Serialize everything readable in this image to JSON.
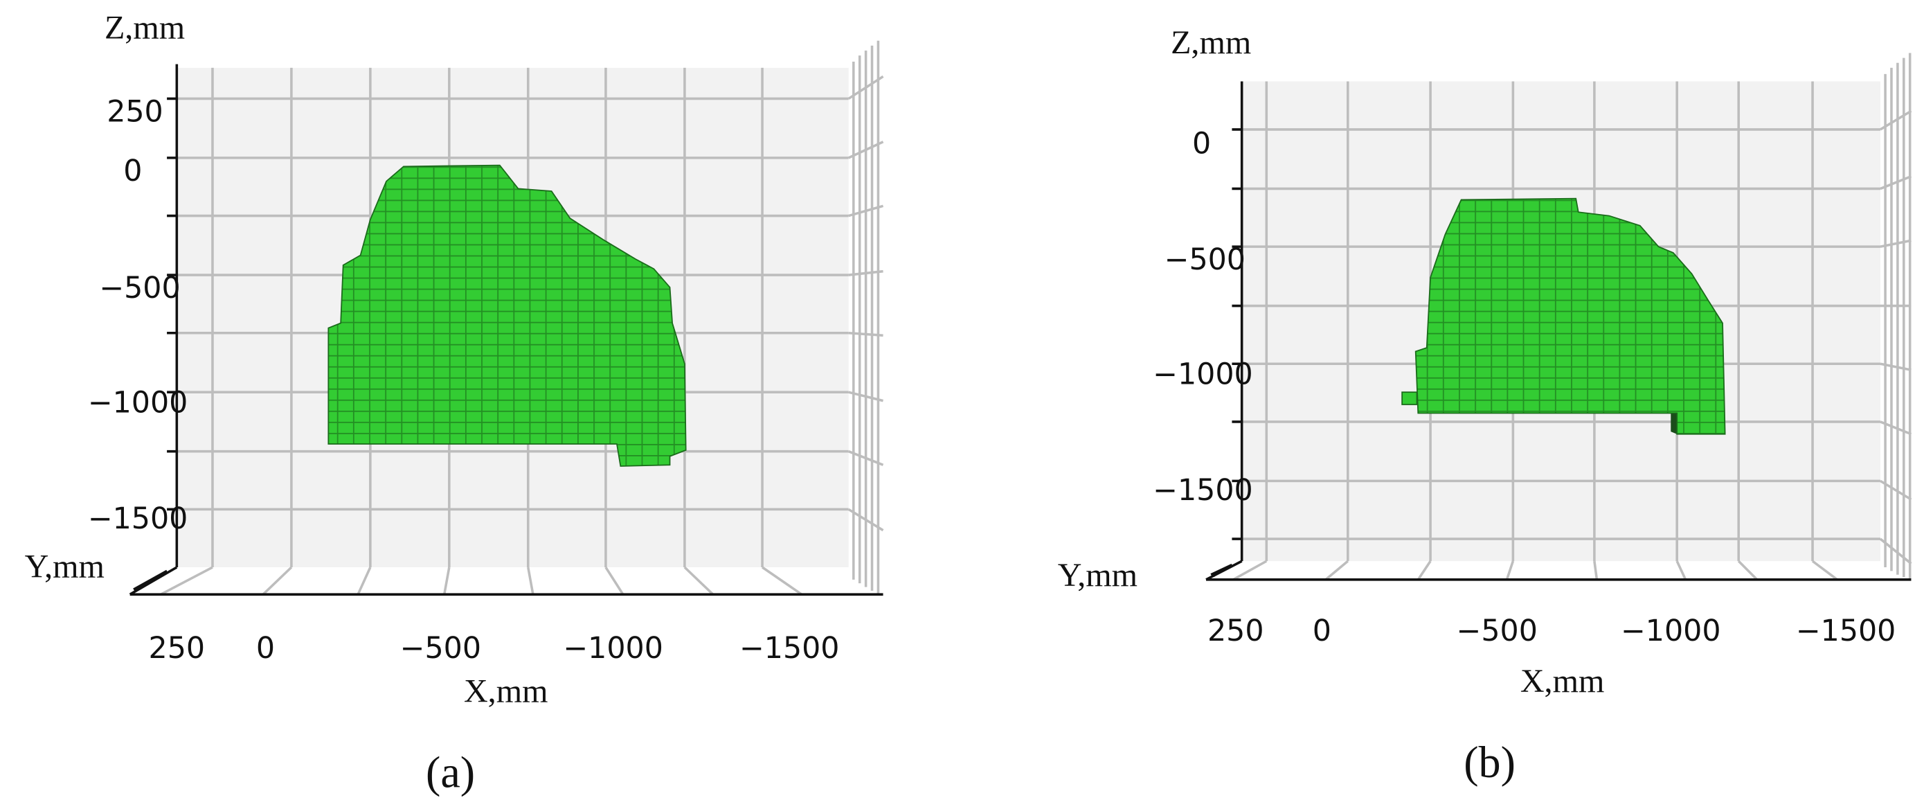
{
  "panels": [
    {
      "label": "(a)",
      "z_title": "Z,mm",
      "y_title": "Y,mm",
      "x_title": "X,mm",
      "z_ticks": [
        "250",
        "0",
        "−500",
        "−1000",
        "−1500"
      ],
      "x_ticks": [
        "250",
        "0",
        "−500",
        "−1000",
        "−1500"
      ]
    },
    {
      "label": "(b)",
      "z_title": "Z,mm",
      "y_title": "Y,mm",
      "x_title": "X,mm",
      "z_ticks": [
        "0",
        "−500",
        "−1000",
        "−1500"
      ],
      "x_ticks": [
        "250",
        "0",
        "−500",
        "−1000",
        "−1500"
      ]
    }
  ]
}
